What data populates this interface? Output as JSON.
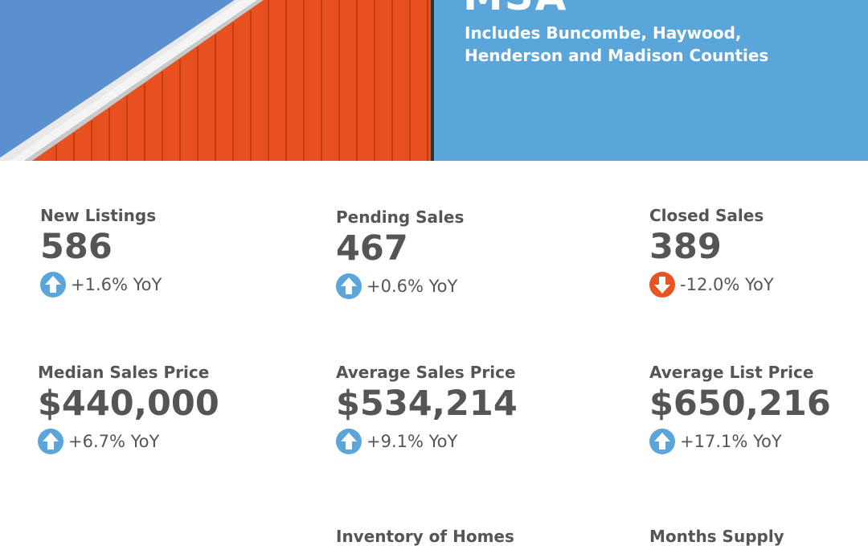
{
  "header": {
    "region_title": "MSA",
    "subtitle_line1": "Includes Buncombe, Haywood,",
    "subtitle_line2": "Henderson and Madison Counties",
    "colors": {
      "banner": "#5aa5d9",
      "barn": "#e8511f",
      "sky": "#5a8fcf"
    }
  },
  "metrics": [
    {
      "label": "New Listings",
      "value": "586",
      "change": "+1.6% YoY",
      "direction": "up",
      "icon": "arrow-up-icon"
    },
    {
      "label": "Pending Sales",
      "value": "467",
      "change": "+0.6% YoY",
      "direction": "up",
      "icon": "arrow-up-icon"
    },
    {
      "label": "Closed Sales",
      "value": "389",
      "change": "-12.0% YoY",
      "direction": "down",
      "icon": "arrow-down-icon"
    },
    {
      "label": "Median Sales Price",
      "value": "$440,000",
      "change": "+6.7% YoY",
      "direction": "up",
      "icon": "arrow-up-icon"
    },
    {
      "label": "Average Sales Price",
      "value": "$534,214",
      "change": "+9.1% YoY",
      "direction": "up",
      "icon": "arrow-up-icon"
    },
    {
      "label": "Average List Price",
      "value": "$650,216",
      "change": "+17.1% YoY",
      "direction": "up",
      "icon": "arrow-up-icon"
    },
    {
      "label": "Inventory of Homes",
      "value": "",
      "change": ""
    },
    {
      "label": "Months Supply",
      "value": "",
      "change": ""
    }
  ]
}
